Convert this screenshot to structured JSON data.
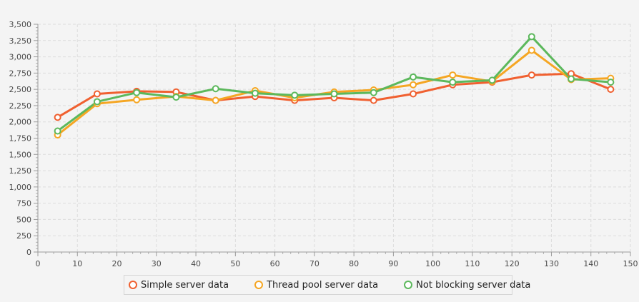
{
  "chart_data": {
    "type": "line",
    "xlim": [
      0,
      150
    ],
    "ylim": [
      0,
      3500
    ],
    "x_ticks": [
      "0",
      "10",
      "20",
      "30",
      "40",
      "50",
      "60",
      "70",
      "80",
      "90",
      "100",
      "110",
      "120",
      "130",
      "140",
      "150"
    ],
    "y_ticks": [
      "0",
      "250",
      "500",
      "750",
      "1,000",
      "1,250",
      "1,500",
      "1,750",
      "2,000",
      "2,250",
      "2,500",
      "2,750",
      "3,000",
      "3,250",
      "3,500"
    ],
    "grid": true,
    "legend_position": "bottom",
    "x": [
      5,
      15,
      25,
      35,
      45,
      55,
      65,
      75,
      85,
      95,
      105,
      115,
      125,
      135,
      145
    ],
    "series": [
      {
        "name": "Simple server data",
        "color": "#f06030",
        "values": [
          2070,
          2430,
          2470,
          2460,
          2330,
          2390,
          2330,
          2370,
          2330,
          2430,
          2570,
          2610,
          2720,
          2740,
          2500
        ]
      },
      {
        "name": "Thread pool server data",
        "color": "#f5a623",
        "values": [
          1800,
          2280,
          2340,
          2390,
          2330,
          2480,
          2370,
          2460,
          2490,
          2570,
          2720,
          2620,
          3100,
          2650,
          2670
        ]
      },
      {
        "name": "Not blocking server data",
        "color": "#5cb85c",
        "values": [
          1860,
          2310,
          2450,
          2380,
          2510,
          2440,
          2410,
          2430,
          2450,
          2690,
          2610,
          2640,
          3310,
          2660,
          2610
        ]
      }
    ]
  }
}
